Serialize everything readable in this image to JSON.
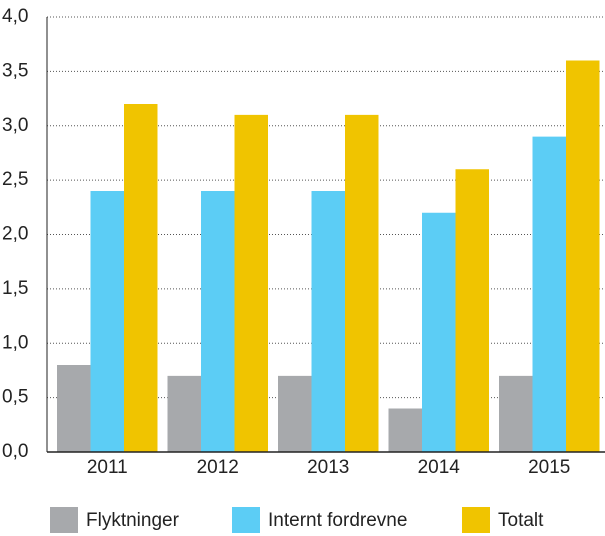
{
  "chart_data": {
    "type": "bar",
    "categories": [
      "2011",
      "2012",
      "2013",
      "2014",
      "2015"
    ],
    "series": [
      {
        "name": "Flyktninger",
        "color": "#a7a9ac",
        "values": [
          0.8,
          0.7,
          0.7,
          0.4,
          0.7
        ]
      },
      {
        "name": "Internt fordrevne",
        "color": "#5ccdf5",
        "values": [
          2.4,
          2.4,
          2.4,
          2.2,
          2.9
        ]
      },
      {
        "name": "Totalt",
        "color": "#f0c400",
        "values": [
          3.2,
          3.1,
          3.1,
          2.6,
          3.6
        ]
      }
    ],
    "ylim": [
      0,
      4
    ],
    "yticks": [
      {
        "value": 0,
        "label": "0,0"
      },
      {
        "value": 0.5,
        "label": "0,5"
      },
      {
        "value": 1,
        "label": "1,0"
      },
      {
        "value": 1.5,
        "label": "1,5"
      },
      {
        "value": 2,
        "label": "2,0"
      },
      {
        "value": 2.5,
        "label": "2,5"
      },
      {
        "value": 3,
        "label": "3,0"
      },
      {
        "value": 3.5,
        "label": "3,5"
      },
      {
        "value": 4,
        "label": "4,0"
      }
    ],
    "grid": true,
    "legend": "bottom"
  }
}
